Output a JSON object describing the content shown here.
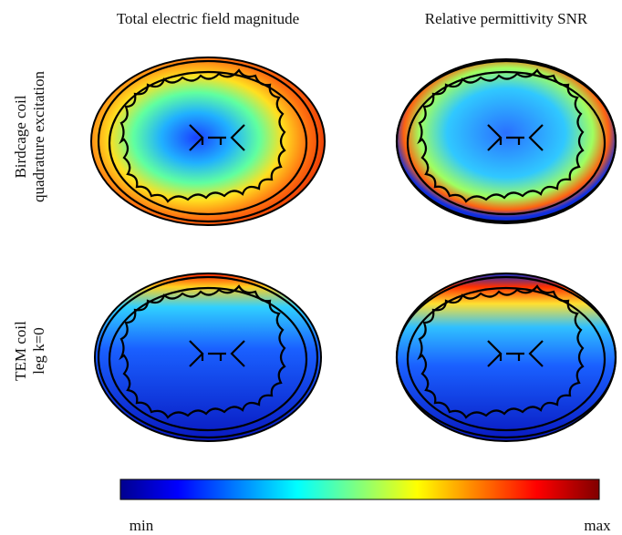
{
  "columns": [
    {
      "title": "Total electric field magnitude"
    },
    {
      "title": "Relative permittivity SNR"
    }
  ],
  "rows": [
    {
      "label_lines": [
        "Birdcage coil",
        "quadrature excitation"
      ]
    },
    {
      "label_lines": [
        "TEM coil",
        "leg k=0"
      ]
    }
  ],
  "colorbar": {
    "min_label": "min",
    "max_label": "max"
  }
}
